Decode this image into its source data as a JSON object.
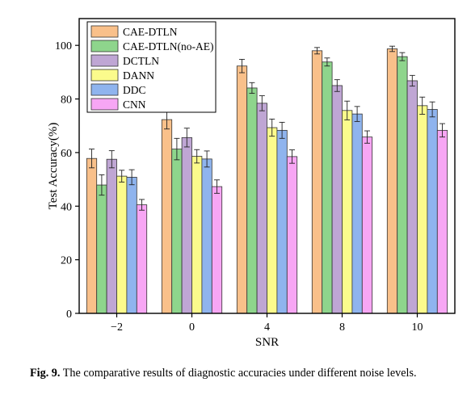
{
  "chart_data": {
    "type": "bar",
    "xlabel": "SNR",
    "ylabel": "Test Accuracy(%)",
    "categories": [
      "−2",
      "0",
      "4",
      "8",
      "10"
    ],
    "ylim": [
      0,
      110
    ],
    "yticks": [
      0,
      20,
      40,
      60,
      80,
      100
    ],
    "legend_position": "top-left",
    "error_bars": true,
    "grid": false,
    "series": [
      {
        "name": "CAE-DTLN",
        "color": "#F9C08A",
        "values": [
          57.8,
          72.3,
          92.3,
          98.0,
          98.7
        ],
        "errors": [
          3.5,
          3.5,
          2.5,
          1.2,
          1.0
        ]
      },
      {
        "name": "CAE-DTLN(no-AE)",
        "color": "#8ED58C",
        "values": [
          47.9,
          61.3,
          84.1,
          93.8,
          95.8
        ],
        "errors": [
          3.8,
          4.0,
          2.0,
          1.5,
          1.5
        ]
      },
      {
        "name": "DCTLN",
        "color": "#BFA6D4",
        "values": [
          57.5,
          65.6,
          78.4,
          85.0,
          86.8
        ],
        "errors": [
          3.2,
          3.5,
          2.8,
          2.2,
          2.0
        ]
      },
      {
        "name": "DANN",
        "color": "#FBFB8C",
        "values": [
          51.2,
          58.6,
          69.3,
          75.7,
          77.5
        ],
        "errors": [
          2.2,
          2.5,
          3.2,
          3.5,
          3.2
        ]
      },
      {
        "name": "DDC",
        "color": "#8FB4EE",
        "values": [
          50.8,
          57.6,
          68.3,
          74.4,
          76.1
        ],
        "errors": [
          2.8,
          3.0,
          3.0,
          2.8,
          2.8
        ]
      },
      {
        "name": "CNN",
        "color": "#F7A6F4",
        "values": [
          40.5,
          47.3,
          58.5,
          65.8,
          68.3
        ],
        "errors": [
          2.0,
          2.5,
          2.5,
          2.3,
          2.5
        ]
      }
    ]
  },
  "caption": {
    "label": "Fig. 9.",
    "text": "The comparative results of diagnostic accuracies under different noise levels."
  }
}
